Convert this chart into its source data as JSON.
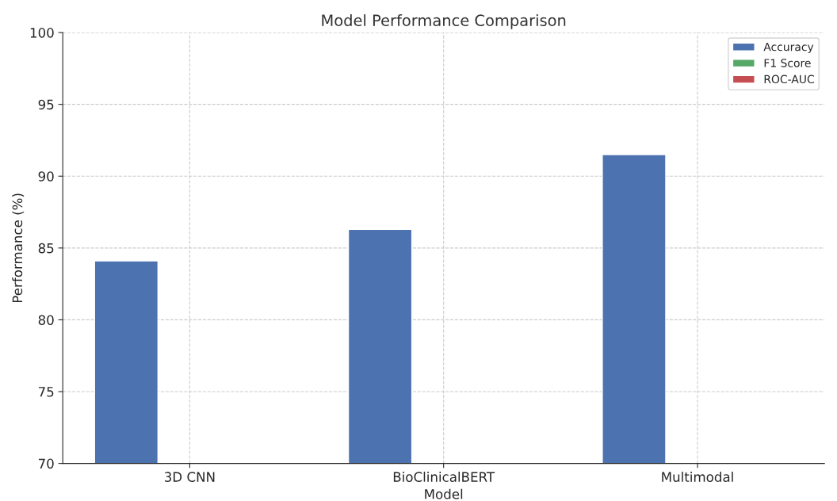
{
  "chart_data": {
    "type": "bar",
    "title": "Model Performance Comparison",
    "xlabel": "Model",
    "ylabel": "Performance (%)",
    "categories": [
      "3D CNN",
      "BioClinicalBERT",
      "Multimodal"
    ],
    "series": [
      {
        "name": "Accuracy",
        "color": "#4c72b0",
        "values": [
          84.1,
          86.3,
          91.5
        ]
      },
      {
        "name": "F1 Score",
        "color": "#55a868",
        "values": [
          null,
          null,
          null
        ]
      },
      {
        "name": "ROC-AUC",
        "color": "#c44e52",
        "values": [
          null,
          null,
          null
        ]
      }
    ],
    "ylim": [
      70,
      100
    ],
    "yticks": [
      70,
      75,
      80,
      85,
      90,
      95,
      100
    ],
    "grid": true,
    "legend": "top right"
  }
}
